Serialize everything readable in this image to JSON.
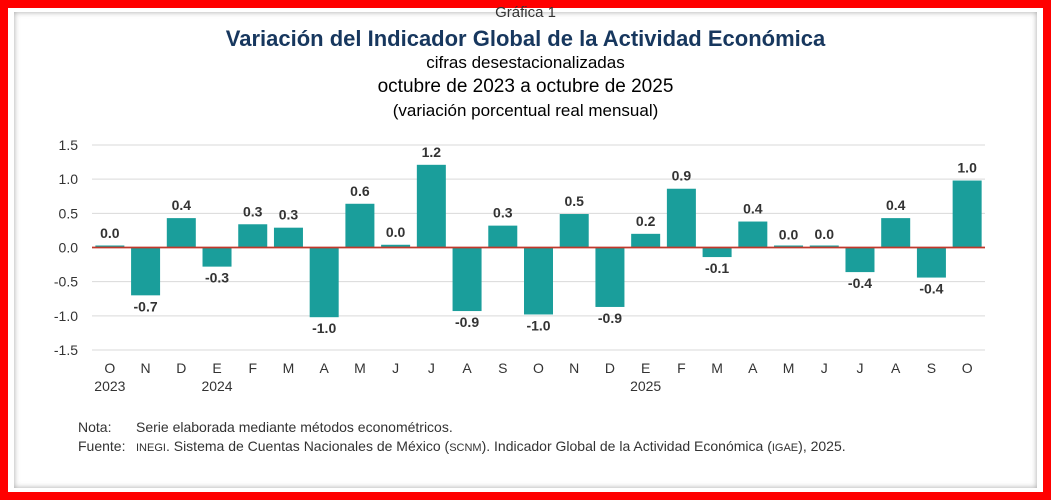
{
  "header": {
    "chart_label": "Gráfica 1",
    "title": "Variación del Indicador Global de la Actividad Económica",
    "subtitle": "cifras desestacionalizadas",
    "period": "octubre de 2023 a octubre de 2025",
    "units": "(variación porcentual real mensual)"
  },
  "notes": {
    "note_label": "Nota:",
    "note_text": "Serie elaborada mediante métodos econométricos.",
    "source_label": "Fuente:",
    "source_org": "INEGI",
    "source_text_1": ". Sistema de Cuentas Nacionales de México (",
    "source_abbr_1": "SCNM",
    "source_text_2": "). Indicador Global de la Actividad Económica (",
    "source_abbr_2": "IGAE",
    "source_text_3": "), 2025."
  },
  "colors": {
    "bar": "#1a9e9b",
    "zero_line": "#c0392b",
    "grid": "#d9d9d9",
    "frame": "#ff0000"
  },
  "chart_data": {
    "type": "bar",
    "title": "Variación del Indicador Global de la Actividad Económica",
    "xlabel": "",
    "ylabel": "variación porcentual real mensual",
    "ylim": [
      -1.5,
      1.5
    ],
    "yticks": [
      1.5,
      1.0,
      0.5,
      0.0,
      -0.5,
      -1.0,
      -1.5
    ],
    "ytick_labels": [
      "1.5",
      "1.0",
      "0.5",
      "0.0",
      "-0.5",
      "-1.0",
      "-1.5"
    ],
    "categories": [
      "O",
      "N",
      "D",
      "E",
      "F",
      "M",
      "A",
      "M",
      "J",
      "J",
      "A",
      "S",
      "O",
      "N",
      "D",
      "E",
      "F",
      "M",
      "A",
      "M",
      "J",
      "J",
      "A",
      "S",
      "O"
    ],
    "year_labels": [
      {
        "index": 0,
        "label": "2023"
      },
      {
        "index": 3,
        "label": "2024"
      },
      {
        "index": 15,
        "label": "2025"
      }
    ],
    "values": [
      0.02,
      -0.7,
      0.43,
      -0.28,
      0.34,
      0.29,
      -1.02,
      0.64,
      0.04,
      1.21,
      -0.93,
      0.32,
      -0.98,
      0.49,
      -0.87,
      0.2,
      0.86,
      -0.14,
      0.38,
      0.0,
      0.01,
      -0.36,
      0.43,
      -0.44,
      0.98
    ],
    "data_labels": [
      "0.0",
      "-0.7",
      "0.4",
      "-0.3",
      "0.3",
      "0.3",
      "-1.0",
      "0.6",
      "0.0",
      "1.2",
      "-0.9",
      "0.3",
      "-1.0",
      "0.5",
      "-0.9",
      "0.2",
      "0.9",
      "-0.1",
      "0.4",
      "0.0",
      "0.0",
      "-0.4",
      "0.4",
      "-0.4",
      "1.0"
    ]
  }
}
